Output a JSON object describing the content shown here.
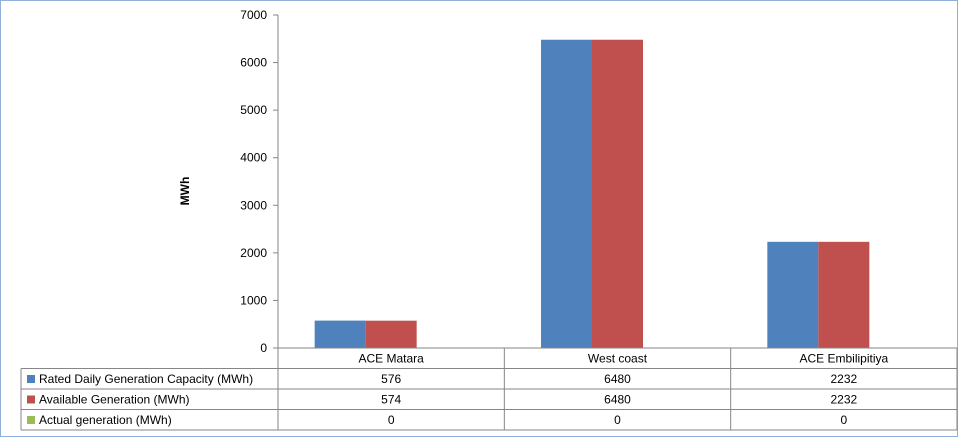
{
  "chart_data": {
    "type": "bar",
    "title": "",
    "xlabel": "",
    "ylabel": "MWh",
    "ylim": [
      0,
      7000
    ],
    "yticks": [
      0,
      1000,
      2000,
      3000,
      4000,
      5000,
      6000,
      7000
    ],
    "categories": [
      "ACE Matara",
      "West coast",
      "ACE Embilipitiya"
    ],
    "series": [
      {
        "name": "Rated Daily Generation Capacity (MWh)",
        "color": "#4f81bd",
        "values": [
          576,
          6480,
          2232
        ]
      },
      {
        "name": "Available Generation (MWh)",
        "color": "#c0504d",
        "values": [
          574,
          6480,
          2232
        ]
      },
      {
        "name": "Actual generation (MWh)",
        "color": "#9bbb59",
        "values": [
          0,
          0,
          0
        ]
      }
    ],
    "grid": false,
    "legend": "data-table"
  }
}
